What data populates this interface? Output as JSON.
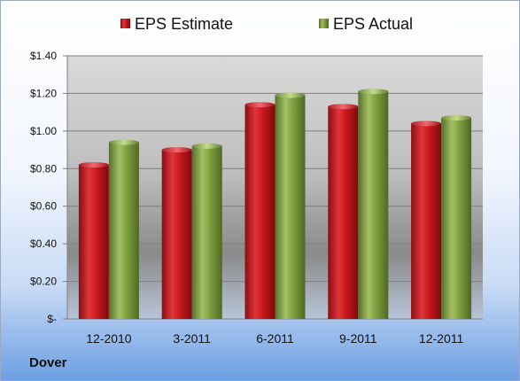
{
  "company": "Dover",
  "colors": {
    "estimate": "#c0181c",
    "actual": "#7a9a3a"
  },
  "chart_data": {
    "type": "bar",
    "categories": [
      "12-2010",
      "3-2011",
      "6-2011",
      "9-2011",
      "12-2011"
    ],
    "series": [
      {
        "name": "EPS Estimate",
        "values": [
          0.82,
          0.9,
          1.14,
          1.13,
          1.04
        ]
      },
      {
        "name": "EPS Actual",
        "values": [
          0.94,
          0.92,
          1.19,
          1.21,
          1.07
        ]
      }
    ],
    "yticks": [
      0,
      0.2,
      0.4,
      0.6,
      0.8,
      1.0,
      1.2,
      1.4
    ],
    "ytick_labels": [
      "$-",
      "$0.20",
      "$0.40",
      "$0.60",
      "$0.80",
      "$1.00",
      "$1.20",
      "$1.40"
    ],
    "ylim": [
      0,
      1.4
    ],
    "grid": true,
    "legend": "top"
  }
}
